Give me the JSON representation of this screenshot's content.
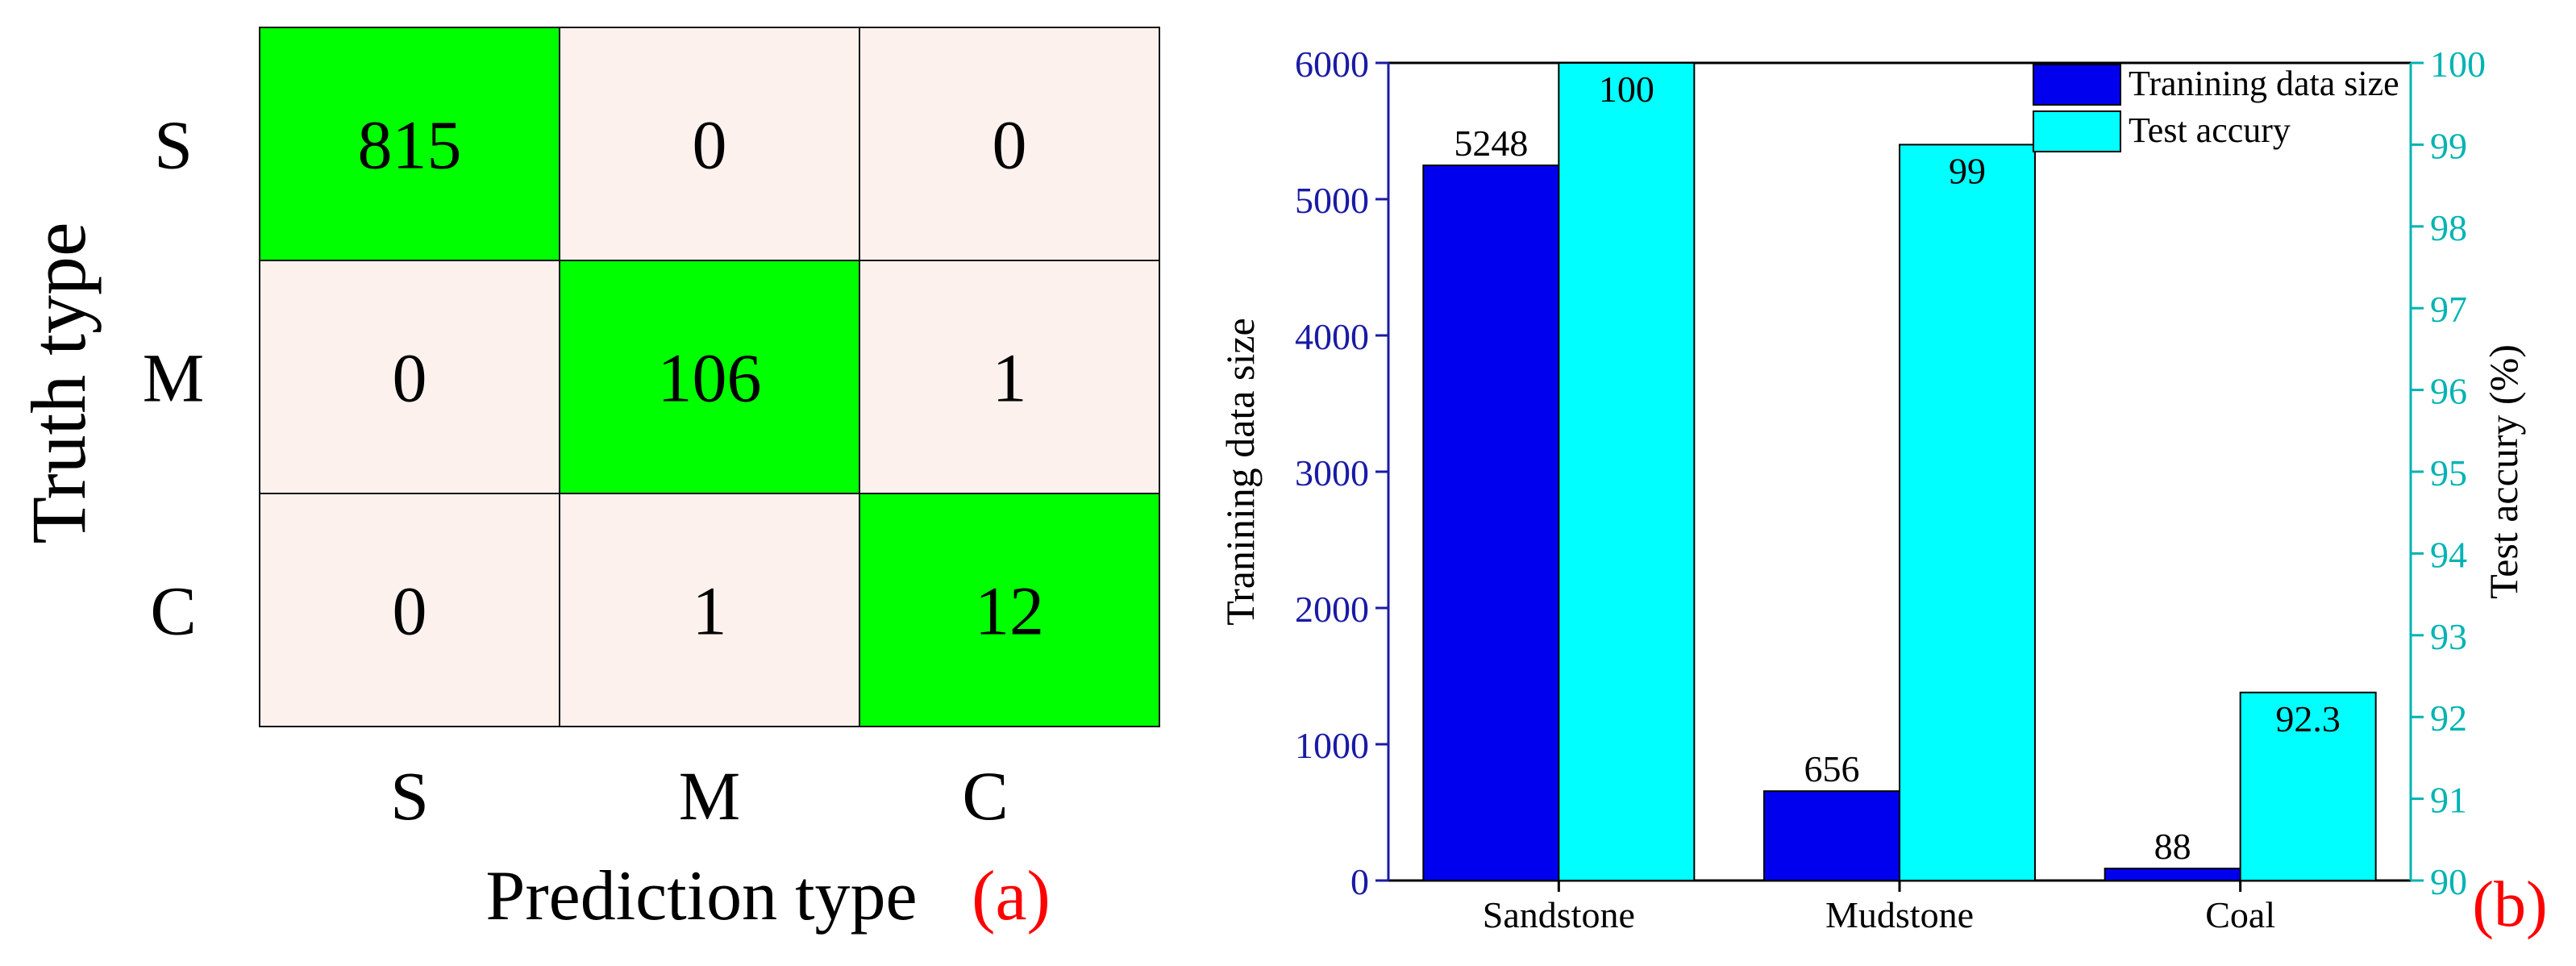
{
  "chart_data": [
    {
      "type": "heatmap",
      "xlabel": "Prediction type",
      "ylabel": "Truth type",
      "panel_label": "(a)",
      "x_categories": [
        "S",
        "M",
        "C"
      ],
      "y_categories": [
        "S",
        "M",
        "C"
      ],
      "values": [
        [
          815,
          0,
          0
        ],
        [
          0,
          106,
          1
        ],
        [
          0,
          1,
          12
        ]
      ],
      "colors": {
        "diagonal": "#00ff00",
        "offdiagonal": "#fdf1ee",
        "panel_label": "#ff0000"
      }
    },
    {
      "type": "bar",
      "panel_label": "(b)",
      "categories": [
        "Sandstone",
        "Mudstone",
        "Coal"
      ],
      "ylabel": "Tranining data size",
      "ylabel_right": "Test accury (%)",
      "ylim": [
        0,
        6000
      ],
      "yticks": [
        0,
        1000,
        2000,
        3000,
        4000,
        5000,
        6000
      ],
      "ylim_right": [
        90,
        100
      ],
      "yticks_right": [
        90,
        91,
        92,
        93,
        94,
        95,
        96,
        97,
        98,
        99,
        100
      ],
      "legend_position": "top-right",
      "series": [
        {
          "name": "Tranining data size",
          "axis": "left",
          "values": [
            5248,
            656,
            88
          ],
          "labels": [
            "5248",
            "656",
            "88"
          ],
          "color": "#0000ee"
        },
        {
          "name": "Test accury",
          "axis": "right",
          "values": [
            100,
            99,
            92.3
          ],
          "labels": [
            "100",
            "99",
            "92.3"
          ],
          "color": "#00ffff"
        }
      ],
      "colors": {
        "left_axis": "#1a1aa6",
        "right_axis": "#00b3b3",
        "panel_label": "#ff0000"
      }
    }
  ]
}
